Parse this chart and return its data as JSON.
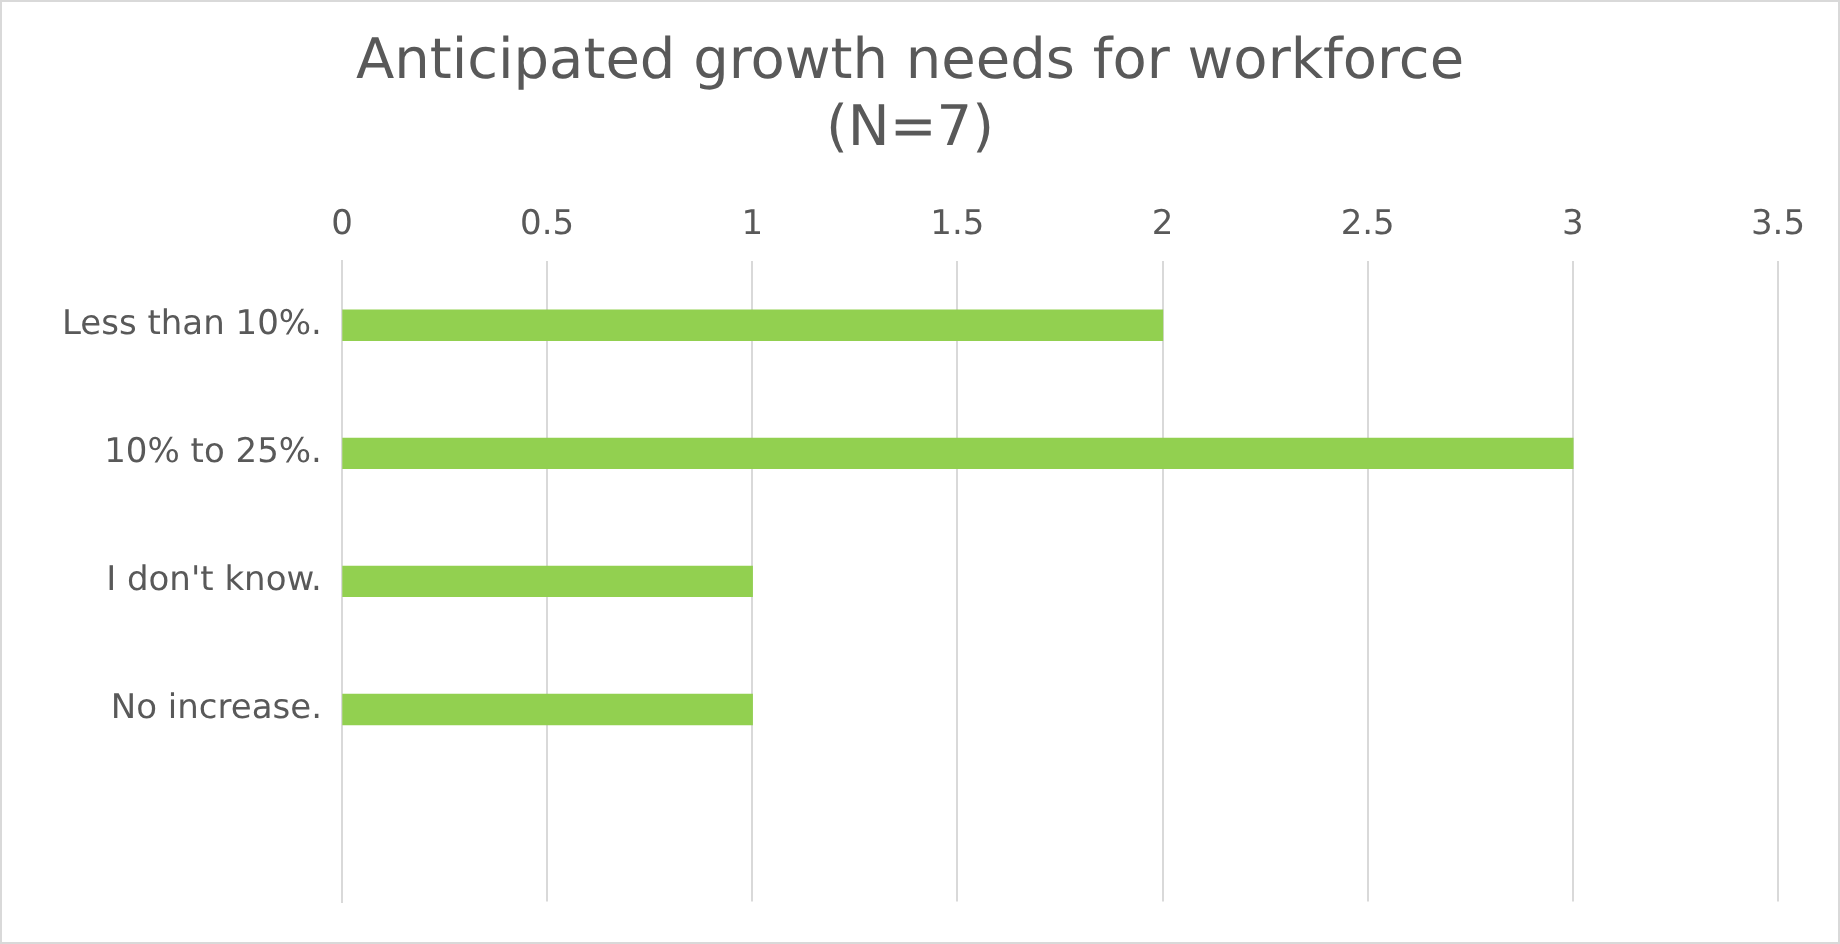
{
  "chart_data": {
    "type": "bar",
    "orientation": "horizontal",
    "title": "Anticipated growth needs for workforce\n(N=7)",
    "categories": [
      "Less than 10%.",
      "10% to 25%.",
      "I don't know.",
      "No increase.",
      null
    ],
    "series": [
      {
        "color": "#92d050",
        "values": [
          2,
          3,
          1,
          1,
          null
        ]
      }
    ],
    "xlim": [
      0,
      3.5
    ],
    "xticks": [
      0,
      0.5,
      1,
      1.5,
      2,
      2.5,
      3,
      3.5
    ],
    "grid": "x",
    "legend": false
  }
}
